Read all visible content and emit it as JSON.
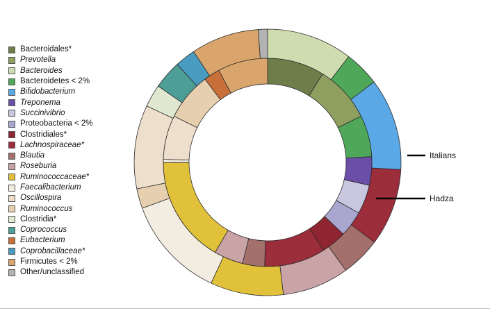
{
  "chart_data": {
    "type": "donut",
    "legend": [
      {
        "key": "bacteroidales",
        "label": "Bacteroidales*",
        "italic": false,
        "color": "#6f7d4a"
      },
      {
        "key": "prevotella",
        "label": "Prevotella",
        "italic": true,
        "color": "#8e9f5f"
      },
      {
        "key": "bacteroides",
        "label": "Bacteroides",
        "italic": true,
        "color": "#cfdcb0"
      },
      {
        "key": "bacteroidetes_lt2",
        "label": "Bacteroidetes < 2%",
        "italic": false,
        "color": "#4fa85a"
      },
      {
        "key": "bifidobacterium",
        "label": "Bifidobacterium",
        "italic": true,
        "color": "#5aa8e6"
      },
      {
        "key": "treponema",
        "label": "Treponema",
        "italic": true,
        "color": "#6a4ea8"
      },
      {
        "key": "succinivibrio",
        "label": "Succinivibrio",
        "italic": true,
        "color": "#c9c6df"
      },
      {
        "key": "proteobacteria_lt2",
        "label": "Proteobacteria < 2%",
        "italic": false,
        "color": "#a9a6cf"
      },
      {
        "key": "clostridiales",
        "label": "Clostridiales*",
        "italic": false,
        "color": "#8f2530"
      },
      {
        "key": "lachnospiraceae",
        "label": "Lachnospiraceae*",
        "italic": true,
        "color": "#9c2d3a"
      },
      {
        "key": "blautia",
        "label": "Blautia",
        "italic": true,
        "color": "#a3706c"
      },
      {
        "key": "roseburia",
        "label": "Roseburia",
        "italic": true,
        "color": "#c9a3a6"
      },
      {
        "key": "ruminococcaceae",
        "label": "Ruminococcaceae*",
        "italic": true,
        "color": "#e2c13a"
      },
      {
        "key": "faecalibacterium",
        "label": "Faecalibacterium",
        "italic": true,
        "color": "#f3ece0"
      },
      {
        "key": "oscillospira",
        "label": "Oscillospira",
        "italic": true,
        "color": "#eddfcb"
      },
      {
        "key": "ruminococcus",
        "label": "Ruminococcus",
        "italic": true,
        "color": "#e6cfae"
      },
      {
        "key": "clostridia",
        "label": "Clostridia*",
        "italic": false,
        "color": "#dfe7d0"
      },
      {
        "key": "coprococcus",
        "label": "Coprococcus",
        "italic": true,
        "color": "#4e9e98"
      },
      {
        "key": "eubacterium",
        "label": "Eubacterium",
        "italic": true,
        "color": "#c9703a"
      },
      {
        "key": "coprobacillaceae",
        "label": "Coprobacillaceae*",
        "italic": true,
        "color": "#4a9bc0"
      },
      {
        "key": "firmicutes_lt2",
        "label": "Firmicutes < 2%",
        "italic": false,
        "color": "#d9a56c"
      },
      {
        "key": "other",
        "label": "Other/unclassified",
        "italic": false,
        "color": "#b2b2b2"
      }
    ],
    "rings": [
      {
        "name": "Italians",
        "segments": [
          {
            "key": "bacteroides",
            "value": 12.1
          },
          {
            "key": "bacteroidetes_lt2",
            "value": 5.0
          },
          {
            "key": "bifidobacterium",
            "value": 13.0
          },
          {
            "key": "lachnospiraceae",
            "value": 10.9
          },
          {
            "key": "blautia",
            "value": 5.6
          },
          {
            "key": "roseburia",
            "value": 9.4
          },
          {
            "key": "ruminococcaceae",
            "value": 10.3
          },
          {
            "key": "faecalibacterium",
            "value": 14.5
          },
          {
            "key": "ruminococcus",
            "value": 2.8
          },
          {
            "key": "oscillospira",
            "value": 11.8
          },
          {
            "key": "clostridia",
            "value": 3.2
          },
          {
            "key": "coprococcus",
            "value": 4.0
          },
          {
            "key": "coprobacillaceae",
            "value": 2.9
          },
          {
            "key": "firmicutes_lt2",
            "value": 9.6
          },
          {
            "key": "other",
            "value": 1.3
          }
        ]
      },
      {
        "name": "Hadza",
        "segments": [
          {
            "key": "bacteroidales",
            "value": 8.8
          },
          {
            "key": "prevotella",
            "value": 8.8
          },
          {
            "key": "bacteroidetes_lt2",
            "value": 6.4
          },
          {
            "key": "treponema",
            "value": 4.4
          },
          {
            "key": "succinivibrio",
            "value": 4.5
          },
          {
            "key": "proteobacteria_lt2",
            "value": 4.0
          },
          {
            "key": "clostridiales",
            "value": 3.9
          },
          {
            "key": "lachnospiraceae",
            "value": 9.4
          },
          {
            "key": "blautia",
            "value": 3.4
          },
          {
            "key": "roseburia",
            "value": 4.5
          },
          {
            "key": "ruminococcaceae",
            "value": 16.5
          },
          {
            "key": "faecalibacterium",
            "value": 0.5
          },
          {
            "key": "oscillospira",
            "value": 6.8
          },
          {
            "key": "ruminococcus",
            "value": 7.4
          },
          {
            "key": "eubacterium",
            "value": 2.5
          },
          {
            "key": "firmicutes_lt2",
            "value": 7.7
          }
        ]
      }
    ]
  }
}
